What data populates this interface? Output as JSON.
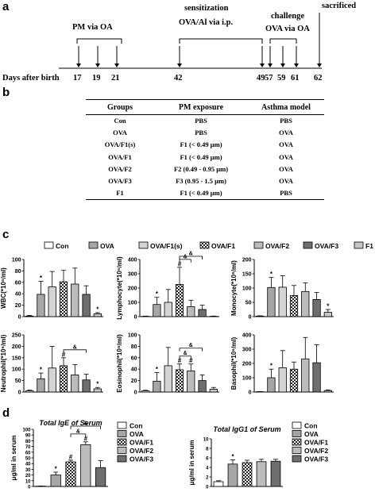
{
  "panels": {
    "a": "a",
    "b": "b",
    "c": "c",
    "d": "d"
  },
  "timeline": {
    "labels": {
      "pm": "PM via OA",
      "sens1": "sensitization",
      "sens2": "OVA/Al via i.p.",
      "chal1": "challenge",
      "chal2": "OVA via OA",
      "sacrificed": "sacrificed"
    },
    "axis_label": "Days after birth",
    "days": [
      "17",
      "19",
      "21",
      "42",
      "49",
      "57",
      "59",
      "61",
      "62"
    ]
  },
  "table": {
    "headers": [
      "Groups",
      "PM exposure",
      "Asthma model"
    ],
    "rows": [
      [
        "Con",
        "PBS",
        "PBS"
      ],
      [
        "OVA",
        "PBS",
        "OVA"
      ],
      [
        "OVA/F1(s)",
        "F1 (< 0.49 μm)",
        "OVA"
      ],
      [
        "OVA/F1",
        "F1 (< 0.49 μm)",
        "OVA"
      ],
      [
        "OVA/F2",
        "F2 (0.49 - 0.95 μm)",
        "OVA"
      ],
      [
        "OVA/F3",
        "F3 (0.95 - 1.5 μm)",
        "OVA"
      ],
      [
        "F1",
        "F1 (< 0.49 μm)",
        "PBS"
      ]
    ]
  },
  "legend_c": [
    "Con",
    "OVA",
    "OVA/F1(s)",
    "OVA/F1",
    "OVA/F2",
    "OVA/F3",
    "F1"
  ],
  "legend_d": [
    "Con",
    "OVA",
    "OVA/F1",
    "OVA/F2",
    "OVA/F3"
  ],
  "colors": {
    "con": "#ffffff",
    "ova": "#a6a6a6",
    "f1s": "#d4d4d4",
    "f1": "#b0b0b0",
    "f2": "#bcbcbc",
    "f3": "#6f6f6f",
    "f1only": "#c6c6c6"
  },
  "chart_data": [
    {
      "type": "bar",
      "ylabel": "WBC(*10⁶/ml)",
      "ylim": [
        0,
        100
      ],
      "ticks": [
        "0",
        "20",
        "40",
        "60",
        "80",
        "100"
      ],
      "categories": [
        "Con",
        "OVA",
        "OVA/F1(s)",
        "OVA/F1",
        "OVA/F2",
        "OVA/F3",
        "F1"
      ],
      "values": [
        1,
        39,
        52,
        61,
        57,
        39,
        5
      ],
      "errors": [
        1,
        23,
        27,
        20,
        28,
        15,
        2
      ],
      "markers": [
        "",
        "*",
        "",
        "",
        "",
        "",
        "*"
      ]
    },
    {
      "type": "bar",
      "ylabel": "Lymphocyte(*10⁶/ml)",
      "ylim": [
        0,
        400
      ],
      "ticks": [
        "0",
        "100",
        "200",
        "300",
        "400"
      ],
      "categories": [
        "Con",
        "OVA",
        "OVA/F1(s)",
        "OVA/F1",
        "OVA/F2",
        "OVA/F3",
        "F1"
      ],
      "values": [
        2,
        85,
        100,
        225,
        70,
        50,
        2
      ],
      "errors": [
        2,
        50,
        90,
        120,
        45,
        30,
        2
      ],
      "markers": [
        "",
        "*",
        "",
        "#",
        "",
        "",
        ""
      ],
      "brackets": [
        "&",
        "&"
      ]
    },
    {
      "type": "bar",
      "ylabel": "Monocyte(*10⁶/ml)",
      "ylim": [
        0,
        200
      ],
      "ticks": [
        "0",
        "50",
        "100",
        "150",
        "200"
      ],
      "categories": [
        "Con",
        "OVA",
        "OVA/F1(s)",
        "OVA/F1",
        "OVA/F2",
        "OVA/F3",
        "F1"
      ],
      "values": [
        2,
        102,
        103,
        74,
        88,
        60,
        15
      ],
      "errors": [
        1,
        35,
        40,
        35,
        30,
        25,
        10
      ],
      "markers": [
        "",
        "*",
        "",
        "",
        "",
        "",
        "*"
      ]
    },
    {
      "type": "bar",
      "ylabel": "Neutrophil(*10⁶/ml)",
      "ylim": [
        0,
        250
      ],
      "ticks": [
        "0",
        "50",
        "100",
        "150",
        "200",
        "250"
      ],
      "categories": [
        "Con",
        "OVA",
        "OVA/F1(s)",
        "OVA/F1",
        "OVA/F2",
        "OVA/F3",
        "F1"
      ],
      "values": [
        5,
        58,
        105,
        115,
        75,
        53,
        14
      ],
      "errors": [
        3,
        25,
        95,
        35,
        45,
        25,
        6
      ],
      "markers": [
        "",
        "*",
        "",
        "#",
        "",
        "",
        "*"
      ],
      "brackets": [
        "&"
      ]
    },
    {
      "type": "bar",
      "ylabel": "Eosinophil(*10⁶/ml)",
      "ylim": [
        0,
        100
      ],
      "ticks": [
        "0",
        "20",
        "40",
        "60",
        "80",
        "100"
      ],
      "categories": [
        "Con",
        "OVA",
        "OVA/F1(s)",
        "OVA/F1",
        "OVA/F2",
        "OVA/F3",
        "F1"
      ],
      "values": [
        2,
        19,
        46,
        39,
        37,
        20,
        5
      ],
      "errors": [
        1,
        15,
        32,
        10,
        12,
        10,
        3
      ],
      "markers": [
        "",
        "*",
        "",
        "#",
        "#",
        "",
        ""
      ],
      "brackets": [
        "&",
        "&"
      ]
    },
    {
      "type": "bar",
      "ylabel": "Basophil(*10⁶/ml)",
      "ylim": [
        0,
        400
      ],
      "ticks": [
        "0",
        "100",
        "200",
        "300",
        "400"
      ],
      "categories": [
        "Con",
        "OVA",
        "OVA/F1(s)",
        "OVA/F1",
        "OVA/F2",
        "OVA/F3",
        "F1"
      ],
      "values": [
        2,
        100,
        170,
        160,
        232,
        205,
        10
      ],
      "errors": [
        1,
        60,
        120,
        50,
        150,
        125,
        5
      ],
      "markers": [
        "",
        "*",
        "",
        "",
        "",
        "",
        ""
      ]
    },
    {
      "type": "bar",
      "title": "Total IgE of Serum",
      "ylabel": "μg/ml in serum",
      "ylim": [
        0,
        100
      ],
      "ticks": [
        "0",
        "10",
        "20",
        "30",
        "40",
        "50",
        "60",
        "70",
        "80",
        "90",
        "100"
      ],
      "categories": [
        "Con",
        "OVA",
        "OVA/F1",
        "OVA/F2",
        "OVA/F3"
      ],
      "values": [
        0.5,
        20,
        43,
        73,
        33
      ],
      "errors": [
        0.3,
        5,
        3,
        5,
        12
      ],
      "markers": [
        "",
        "*",
        "#",
        "#",
        ""
      ],
      "brackets": [
        "&",
        "&"
      ]
    },
    {
      "type": "bar",
      "title": "Total IgG1 of Serum",
      "ylabel": "μg/ml in serum",
      "ylim": [
        0,
        10
      ],
      "ticks": [
        "0",
        "2",
        "4",
        "6",
        "8",
        "10"
      ],
      "categories": [
        "Con",
        "OVA",
        "OVA/F1",
        "OVA/F2",
        "OVA/F3"
      ],
      "values": [
        1,
        4.7,
        5,
        5.2,
        5.3
      ],
      "errors": [
        0.2,
        0.9,
        0.5,
        0.5,
        0.4
      ],
      "markers": [
        "",
        "*",
        "",
        "",
        ""
      ]
    }
  ]
}
